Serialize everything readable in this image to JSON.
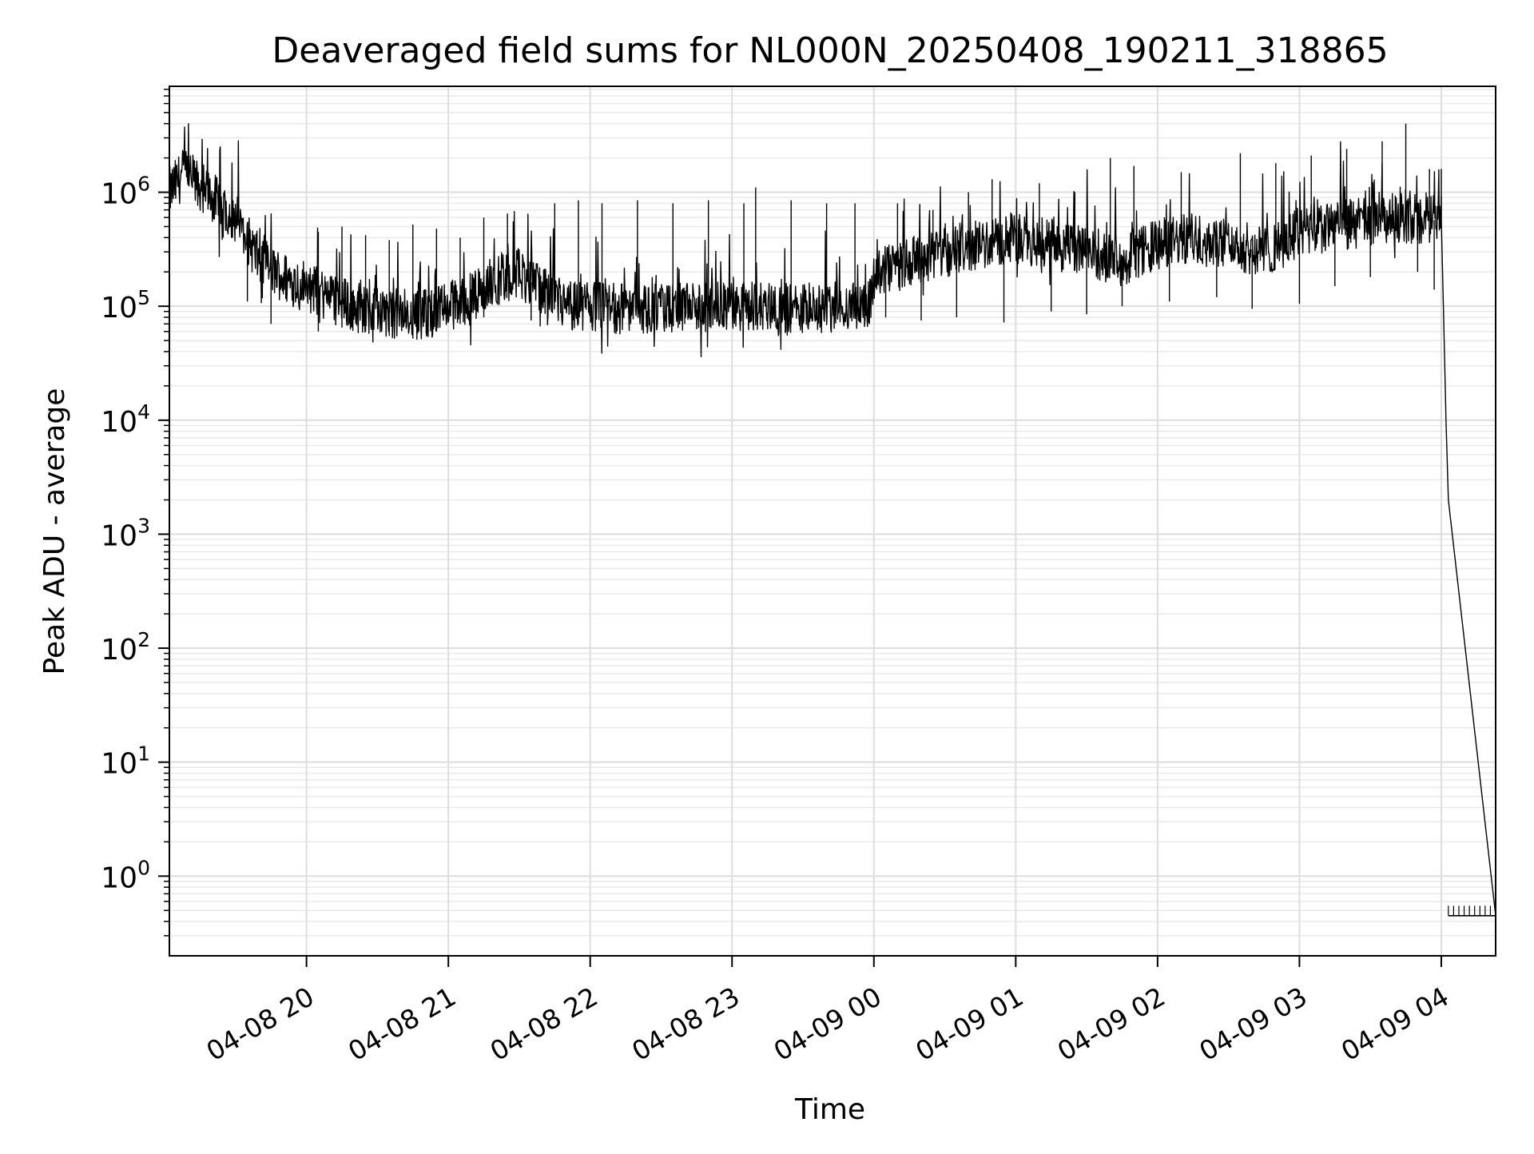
{
  "chart_data": {
    "type": "line",
    "title": "Deaveraged field sums for NL000N_20250408_190211_318865",
    "xlabel": "Time",
    "ylabel": "Peak ADU - average",
    "yscale": "log",
    "grid": true,
    "xlim": [
      "2025-04-08 19:02",
      "2025-04-09 04:23"
    ],
    "ylim": [
      0.2,
      8500000
    ],
    "xtick_values": [
      "2025-04-08 20:00",
      "2025-04-08 21:00",
      "2025-04-08 22:00",
      "2025-04-08 23:00",
      "2025-04-09 00:00",
      "2025-04-09 01:00",
      "2025-04-09 02:00",
      "2025-04-09 03:00",
      "2025-04-09 04:00"
    ],
    "xtick_labels": [
      "04-08 20",
      "04-08 21",
      "04-08 22",
      "04-08 23",
      "04-09 00",
      "04-09 01",
      "04-09 02",
      "04-09 03",
      "04-09 04"
    ],
    "ytick_values": [
      1,
      10,
      100,
      1000,
      10000,
      100000,
      1000000
    ],
    "ytick_labels": [
      {
        "base": "10",
        "exp": "0"
      },
      {
        "base": "10",
        "exp": "1"
      },
      {
        "base": "10",
        "exp": "2"
      },
      {
        "base": "10",
        "exp": "3"
      },
      {
        "base": "10",
        "exp": "4"
      },
      {
        "base": "10",
        "exp": "5"
      },
      {
        "base": "10",
        "exp": "6"
      }
    ],
    "series": [
      {
        "color": "#000000",
        "x": [
          "2025-04-08 19:02",
          "2025-04-08 19:05",
          "2025-04-08 19:08",
          "2025-04-08 19:12",
          "2025-04-08 19:20",
          "2025-04-08 19:30",
          "2025-04-08 19:40",
          "2025-04-08 19:50",
          "2025-04-08 20:00",
          "2025-04-08 20:10",
          "2025-04-08 20:20",
          "2025-04-08 20:30",
          "2025-04-08 20:40",
          "2025-04-08 20:50",
          "2025-04-08 21:00",
          "2025-04-08 21:10",
          "2025-04-08 21:20",
          "2025-04-08 21:30",
          "2025-04-08 21:40",
          "2025-04-08 21:50",
          "2025-04-08 22:00",
          "2025-04-08 22:15",
          "2025-04-08 22:30",
          "2025-04-08 22:45",
          "2025-04-08 23:00",
          "2025-04-08 23:15",
          "2025-04-08 23:30",
          "2025-04-08 23:45",
          "2025-04-08 23:58",
          "2025-04-09 00:00",
          "2025-04-09 00:15",
          "2025-04-09 00:30",
          "2025-04-09 00:45",
          "2025-04-09 01:00",
          "2025-04-09 01:15",
          "2025-04-09 01:30",
          "2025-04-09 01:45",
          "2025-04-09 02:00",
          "2025-04-09 02:15",
          "2025-04-09 02:30",
          "2025-04-09 02:45",
          "2025-04-09 03:00",
          "2025-04-09 03:15",
          "2025-04-09 03:30",
          "2025-04-09 03:45",
          "2025-04-09 03:55",
          "2025-04-09 04:00",
          "2025-04-09 04:01",
          "2025-04-09 04:02",
          "2025-04-09 04:03",
          "2025-04-09 04:23"
        ],
        "values": [
          1000000,
          1200000,
          1500000,
          1300000,
          900000,
          600000,
          250000,
          180000,
          150000,
          120000,
          100000,
          90000,
          85000,
          85000,
          100000,
          120000,
          170000,
          200000,
          130000,
          100000,
          100000,
          95000,
          95000,
          95000,
          100000,
          100000,
          95000,
          100000,
          100000,
          180000,
          250000,
          300000,
          350000,
          400000,
          350000,
          300000,
          250000,
          350000,
          400000,
          350000,
          300000,
          450000,
          500000,
          550000,
          600000,
          550000,
          600000,
          80000,
          10000,
          2000,
          0.45
        ],
        "spikes_high": [
          [
            "2025-04-08 19:35",
            520000
          ],
          [
            "2025-04-08 19:45",
            480000
          ],
          [
            "2025-04-08 20:05",
            450000
          ],
          [
            "2025-04-08 20:15",
            500000
          ],
          [
            "2025-04-08 20:25",
            420000
          ],
          [
            "2025-04-08 20:35",
            380000
          ],
          [
            "2025-04-08 20:45",
            520000
          ],
          [
            "2025-04-08 20:55",
            480000
          ],
          [
            "2025-04-08 21:05",
            400000
          ],
          [
            "2025-04-08 21:15",
            600000
          ],
          [
            "2025-04-08 21:25",
            650000
          ],
          [
            "2025-04-08 21:45",
            800000
          ],
          [
            "2025-04-08 21:55",
            850000
          ],
          [
            "2025-04-08 22:05",
            800000
          ],
          [
            "2025-04-08 22:20",
            850000
          ],
          [
            "2025-04-08 22:35",
            800000
          ],
          [
            "2025-04-08 22:50",
            850000
          ],
          [
            "2025-04-08 23:05",
            800000
          ],
          [
            "2025-04-08 23:10",
            1100000
          ],
          [
            "2025-04-08 23:25",
            850000
          ],
          [
            "2025-04-08 23:40",
            800000
          ],
          [
            "2025-04-08 23:52",
            800000
          ],
          [
            "2025-04-09 00:10",
            800000
          ],
          [
            "2025-04-09 00:25",
            700000
          ],
          [
            "2025-04-09 00:40",
            1000000
          ],
          [
            "2025-04-09 00:50",
            1300000
          ],
          [
            "2025-04-09 01:10",
            1200000
          ],
          [
            "2025-04-09 01:25",
            1000000
          ],
          [
            "2025-04-09 01:40",
            2000000
          ],
          [
            "2025-04-09 01:50",
            1700000
          ],
          [
            "2025-04-09 02:10",
            1500000
          ],
          [
            "2025-04-09 02:35",
            2200000
          ],
          [
            "2025-04-09 02:50",
            1800000
          ],
          [
            "2025-04-09 03:05",
            2100000
          ],
          [
            "2025-04-09 03:20",
            2400000
          ],
          [
            "2025-04-09 03:35",
            2800000
          ],
          [
            "2025-04-09 03:45",
            4000000
          ],
          [
            "2025-04-09 03:55",
            1600000
          ],
          [
            "2025-04-09 04:00",
            1600000
          ]
        ],
        "spikes_low": [
          [
            "2025-04-08 19:35",
            110000
          ],
          [
            "2025-04-08 19:45",
            70000
          ],
          [
            "2025-04-08 20:05",
            60000
          ],
          [
            "2025-04-08 20:15",
            65000
          ],
          [
            "2025-04-08 20:25",
            60000
          ],
          [
            "2025-04-08 20:35",
            55000
          ],
          [
            "2025-04-08 20:45",
            52000
          ],
          [
            "2025-04-08 20:55",
            60000
          ],
          [
            "2025-04-08 21:05",
            70000
          ],
          [
            "2025-04-08 21:15",
            80000
          ],
          [
            "2025-04-08 21:35",
            75000
          ],
          [
            "2025-04-08 21:55",
            70000
          ],
          [
            "2025-04-08 22:10",
            70000
          ],
          [
            "2025-04-08 22:25",
            68000
          ],
          [
            "2025-04-08 22:40",
            70000
          ],
          [
            "2025-04-08 22:55",
            70000
          ],
          [
            "2025-04-08 23:10",
            68000
          ],
          [
            "2025-04-08 23:25",
            70000
          ],
          [
            "2025-04-08 23:40",
            68000
          ],
          [
            "2025-04-09 00:05",
            80000
          ],
          [
            "2025-04-09 00:20",
            75000
          ],
          [
            "2025-04-09 00:35",
            80000
          ],
          [
            "2025-04-09 00:55",
            72000
          ],
          [
            "2025-04-09 01:15",
            90000
          ],
          [
            "2025-04-09 01:30",
            85000
          ],
          [
            "2025-04-09 01:45",
            100000
          ],
          [
            "2025-04-09 02:05",
            110000
          ],
          [
            "2025-04-09 02:25",
            120000
          ],
          [
            "2025-04-09 02:40",
            95000
          ],
          [
            "2025-04-09 03:00",
            105000
          ],
          [
            "2025-04-09 03:15",
            150000
          ],
          [
            "2025-04-09 03:30",
            180000
          ],
          [
            "2025-04-09 03:50",
            200000
          ],
          [
            "2025-04-09 03:57",
            140000
          ]
        ],
        "tail_ticks": 10,
        "tail_tick_top": 0.55
      }
    ]
  }
}
